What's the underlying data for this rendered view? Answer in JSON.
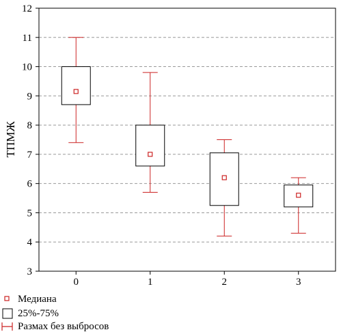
{
  "chart_data": {
    "type": "box",
    "title": "",
    "xlabel": "",
    "ylabel": "ТПМЖ",
    "ylim": [
      3,
      12
    ],
    "yticks": [
      3,
      4,
      5,
      6,
      7,
      8,
      9,
      10,
      11,
      12
    ],
    "categories": [
      "0",
      "1",
      "2",
      "3"
    ],
    "grid": "horizontal dashed",
    "series": [
      {
        "category": "0",
        "median": 9.15,
        "q1": 8.7,
        "q3": 10.0,
        "min": 7.4,
        "max": 11.0
      },
      {
        "category": "1",
        "median": 7.0,
        "q1": 6.6,
        "q3": 8.0,
        "min": 5.7,
        "max": 9.8
      },
      {
        "category": "2",
        "median": 6.2,
        "q1": 5.25,
        "q3": 7.05,
        "min": 4.2,
        "max": 7.5
      },
      {
        "category": "3",
        "median": 5.6,
        "q1": 5.2,
        "q3": 5.95,
        "min": 4.3,
        "max": 6.2
      }
    ],
    "legend": {
      "position": "bottom-left",
      "items": [
        {
          "label": "Медиана",
          "symbol": "median-marker"
        },
        {
          "label": "25%-75%",
          "symbol": "box"
        },
        {
          "label": "Размах без выбросов",
          "symbol": "whisker"
        }
      ]
    },
    "colors": {
      "whisker": "#cc2222",
      "median": "#cc2222",
      "box": "#000000",
      "grid": "#999999"
    }
  }
}
